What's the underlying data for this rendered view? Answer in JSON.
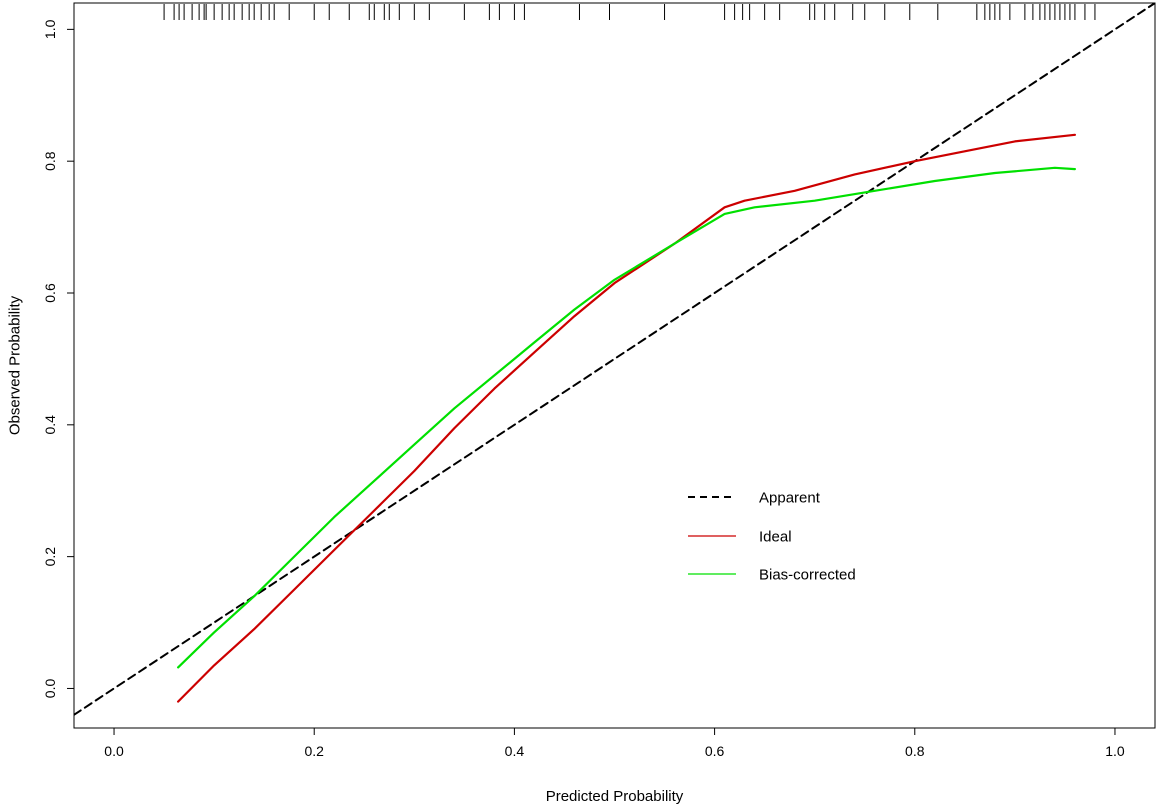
{
  "chart_data": {
    "type": "line",
    "title": "",
    "xlabel": "Predicted Probability",
    "ylabel": "Observed Probability",
    "xlim": [
      -0.04,
      1.04
    ],
    "ylim": [
      -0.06,
      1.04
    ],
    "x_ticks": [
      0.0,
      0.2,
      0.4,
      0.6,
      0.8,
      1.0
    ],
    "x_tick_labels": [
      "0.0",
      "0.2",
      "0.4",
      "0.6",
      "0.8",
      "1.0"
    ],
    "y_ticks": [
      0.0,
      0.2,
      0.4,
      0.6,
      0.8,
      1.0
    ],
    "y_tick_labels": [
      "0.0",
      "0.2",
      "0.4",
      "0.6",
      "0.8",
      "1.0"
    ],
    "grid": false,
    "legend_position": "center-right",
    "series": [
      {
        "name": "Apparent",
        "style": "dashed",
        "color": "#000000",
        "x": [
          -0.04,
          1.04
        ],
        "y": [
          -0.04,
          1.04
        ]
      },
      {
        "name": "Ideal",
        "style": "solid",
        "color": "#cc0000",
        "x": [
          0.064,
          0.1,
          0.14,
          0.18,
          0.22,
          0.26,
          0.3,
          0.34,
          0.38,
          0.42,
          0.46,
          0.5,
          0.56,
          0.61,
          0.63,
          0.68,
          0.74,
          0.8,
          0.86,
          0.9,
          0.96
        ],
        "y": [
          -0.02,
          0.035,
          0.09,
          0.15,
          0.21,
          0.27,
          0.33,
          0.395,
          0.455,
          0.51,
          0.565,
          0.615,
          0.675,
          0.73,
          0.74,
          0.755,
          0.78,
          0.8,
          0.818,
          0.83,
          0.84
        ]
      },
      {
        "name": "Bias-corrected",
        "style": "solid",
        "color": "#00e000",
        "x": [
          0.064,
          0.1,
          0.14,
          0.18,
          0.22,
          0.26,
          0.3,
          0.34,
          0.38,
          0.42,
          0.46,
          0.5,
          0.56,
          0.61,
          0.64,
          0.7,
          0.76,
          0.82,
          0.88,
          0.94,
          0.96
        ],
        "y": [
          0.032,
          0.085,
          0.14,
          0.2,
          0.26,
          0.315,
          0.37,
          0.425,
          0.475,
          0.525,
          0.575,
          0.62,
          0.675,
          0.72,
          0.73,
          0.74,
          0.755,
          0.77,
          0.782,
          0.79,
          0.788
        ]
      }
    ],
    "rug": {
      "position": "top",
      "x": [
        0.05,
        0.06,
        0.065,
        0.07,
        0.078,
        0.085,
        0.09,
        0.092,
        0.1,
        0.108,
        0.115,
        0.12,
        0.128,
        0.135,
        0.14,
        0.147,
        0.155,
        0.16,
        0.175,
        0.2,
        0.215,
        0.235,
        0.255,
        0.26,
        0.27,
        0.275,
        0.285,
        0.3,
        0.315,
        0.35,
        0.375,
        0.385,
        0.4,
        0.41,
        0.465,
        0.495,
        0.55,
        0.61,
        0.62,
        0.628,
        0.635,
        0.65,
        0.665,
        0.695,
        0.7,
        0.71,
        0.72,
        0.738,
        0.75,
        0.77,
        0.795,
        0.823,
        0.862,
        0.87,
        0.875,
        0.88,
        0.885,
        0.895,
        0.91,
        0.918,
        0.925,
        0.93,
        0.935,
        0.94,
        0.945,
        0.95,
        0.955,
        0.96,
        0.97,
        0.98
      ]
    }
  }
}
